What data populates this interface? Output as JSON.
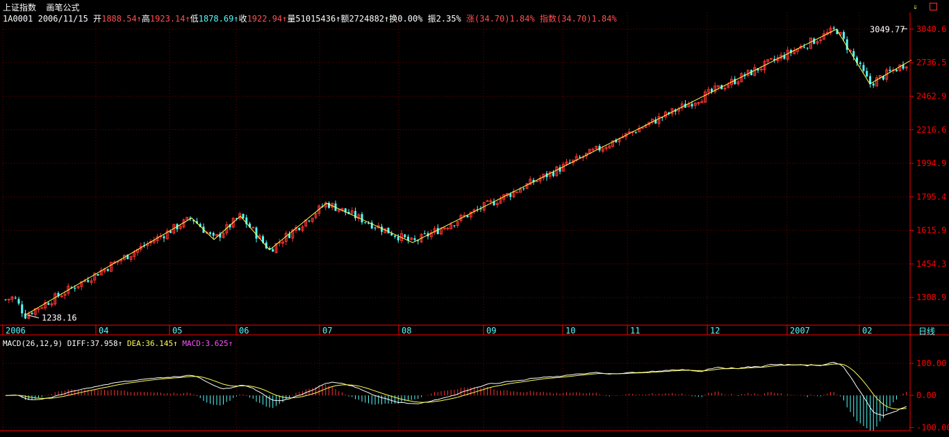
{
  "header": {
    "index_name": "上证指数",
    "formula_label": "画笔公式",
    "code": "1A0001",
    "date": "2006/11/15",
    "open_label": "开",
    "open": "1888.54",
    "high_label": "高",
    "high": "1923.14",
    "low_label": "低",
    "low": "1878.69",
    "close_label": "收",
    "close": "1922.94",
    "volume_label": "量",
    "volume": "51015436",
    "amount_label": "额",
    "amount": "2724882",
    "turnover_label": "换",
    "turnover": "0.00%",
    "amplitude_label": "振",
    "amplitude": "2.35%",
    "change_label": "涨",
    "change": "(34.70)1.84%",
    "index_change_label": "指数",
    "index_change": "(34.70)1.84%"
  },
  "right_panel": {
    "period_label": "日线",
    "menu_icon": "arrow-down-icon",
    "menu_icon_2": "window-icon"
  },
  "colors": {
    "up": "#ff3232",
    "down": "#54fcfc",
    "grid": "#800000",
    "axis": "#ff0000",
    "zigzag": "#ffff54",
    "text_red": "#ff5050",
    "text_white": "#ffffff",
    "macd_purple": "#ff54ff"
  },
  "indicator": {
    "name": "MACD(26,12,9)",
    "diff_label": "DIFF:",
    "diff": "37.958",
    "dea_label": "DEA:",
    "dea": "36.145",
    "macd_label": "MACD:",
    "macd": "3.625"
  },
  "chart_data": [
    {
      "type": "candlestick",
      "y_ticks": [
        "3040.6",
        "2736.5",
        "2462.9",
        "2216.6",
        "1994.9",
        "1795.4",
        "1615.9",
        "1454.3",
        "1308.9"
      ],
      "y_tick_values": [
        3040.6,
        2736.5,
        2462.9,
        2216.6,
        1994.9,
        1795.4,
        1615.9,
        1454.3,
        1308.9
      ],
      "log_scale": true,
      "x_ticks": [
        "2006",
        "04",
        "05",
        "06",
        "07",
        "08",
        "09",
        "10",
        "11",
        "12",
        "2007",
        "02"
      ],
      "annotations": [
        {
          "text": "3049.77",
          "value": 3049.77
        },
        {
          "text": "1238.16",
          "value": 1238.16
        }
      ],
      "zigzag_points": [
        1238,
        1680,
        1570,
        1690,
        1520,
        1760,
        1555,
        3040,
        2560,
        2760
      ],
      "grid": true
    },
    {
      "type": "macd",
      "y_ticks": [
        "100.00",
        "0.00",
        "-100.00"
      ],
      "y_tick_values": [
        100,
        0,
        -100
      ],
      "ylim": [
        -110,
        180
      ],
      "grid": true
    }
  ]
}
